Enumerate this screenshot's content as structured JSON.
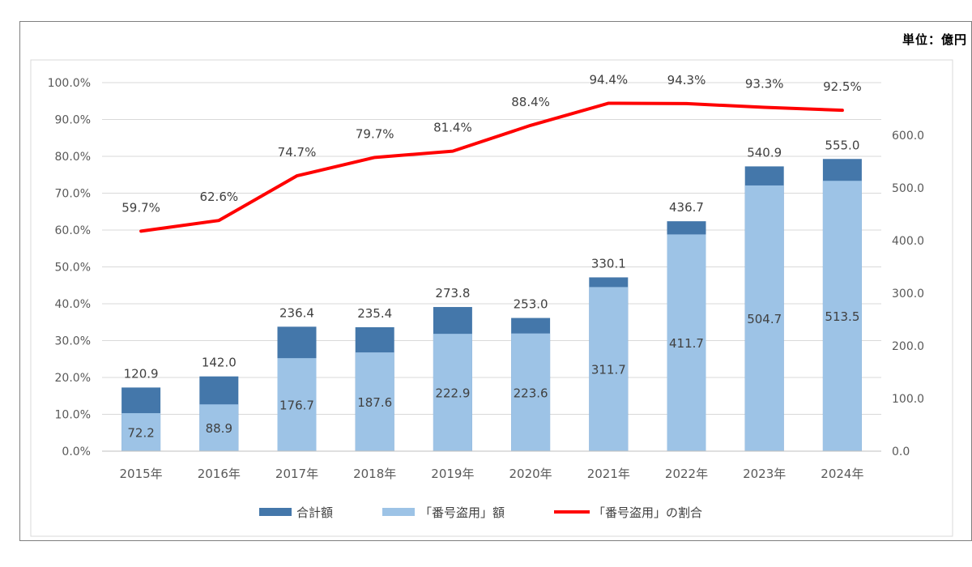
{
  "unit_label": "単位：億円",
  "chart_data": {
    "type": "bar",
    "stacked": true,
    "categories": [
      "2015年",
      "2016年",
      "2017年",
      "2018年",
      "2019年",
      "2020年",
      "2021年",
      "2022年",
      "2023年",
      "2024年"
    ],
    "series": [
      {
        "name": "合計額",
        "type": "bar",
        "axis": "right",
        "color": "#4477aa",
        "values": [
          120.9,
          142.0,
          236.4,
          235.4,
          273.8,
          253.0,
          330.1,
          436.7,
          540.9,
          555.0
        ],
        "labels": [
          "120.9",
          "142.0",
          "236.4",
          "235.4",
          "273.8",
          "253.0",
          "330.1",
          "436.7",
          "540.9",
          "555.0"
        ]
      },
      {
        "name": "「番号盗用」額",
        "type": "bar",
        "axis": "right",
        "color": "#9dc3e6",
        "values": [
          72.2,
          88.9,
          176.7,
          187.6,
          222.9,
          223.6,
          311.7,
          411.7,
          504.7,
          513.5
        ],
        "labels": [
          "72.2",
          "88.9",
          "176.7",
          "187.6",
          "222.9",
          "223.6",
          "311.7",
          "411.7",
          "504.7",
          "513.5"
        ]
      },
      {
        "name": "「番号盗用」の割合",
        "type": "line",
        "axis": "left",
        "color": "#ff0000",
        "values": [
          59.7,
          62.6,
          74.7,
          79.7,
          81.4,
          88.4,
          94.4,
          94.3,
          93.3,
          92.5
        ],
        "labels": [
          "59.7%",
          "62.6%",
          "74.7%",
          "79.7%",
          "81.4%",
          "88.4%",
          "94.4%",
          "94.3%",
          "93.3%",
          "92.5%"
        ]
      }
    ],
    "y_left": {
      "min": 0,
      "max": 100,
      "step": 10,
      "ticks": [
        "0.0%",
        "10.0%",
        "20.0%",
        "30.0%",
        "40.0%",
        "50.0%",
        "60.0%",
        "70.0%",
        "80.0%",
        "90.0%",
        "100.0%"
      ]
    },
    "y_right": {
      "min": 0,
      "max": 700,
      "step": 100,
      "ticks": [
        "0.0",
        "100.0",
        "200.0",
        "300.0",
        "400.0",
        "500.0",
        "600.0"
      ]
    },
    "grid": true,
    "legend_position": "bottom"
  }
}
